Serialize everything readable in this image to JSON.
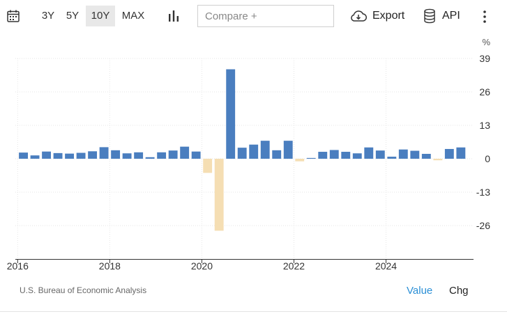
{
  "toolbar": {
    "calendar_icon": "calendar-icon",
    "ranges": [
      {
        "label": "3Y",
        "active": false
      },
      {
        "label": "5Y",
        "active": false
      },
      {
        "label": "10Y",
        "active": true
      },
      {
        "label": "MAX",
        "active": false
      }
    ],
    "chart_type_icon": "bar-chart-icon",
    "compare_placeholder": "Compare +",
    "export_label": "Export",
    "api_label": "API",
    "more_icon": "kebab-menu-icon"
  },
  "footer": {
    "source": "U.S. Bureau of Economic Analysis",
    "value_label": "Value",
    "chg_label": "Chg"
  },
  "colors": {
    "positive": "#4a7ebf",
    "negative": "#f5deb3",
    "accent": "#2a8fd6"
  },
  "chart_data": {
    "type": "bar",
    "unit": "%",
    "ylim": [
      -39,
      39
    ],
    "yticks": [
      39,
      26,
      13,
      0,
      -13,
      -26
    ],
    "xlim": [
      2015.95,
      2025.9
    ],
    "xticks": [
      2016,
      2018,
      2020,
      2022,
      2024
    ],
    "grid": true,
    "x": [
      2016.0,
      2016.25,
      2016.5,
      2016.75,
      2017.0,
      2017.25,
      2017.5,
      2017.75,
      2018.0,
      2018.25,
      2018.5,
      2018.75,
      2019.0,
      2019.25,
      2019.5,
      2019.75,
      2020.0,
      2020.25,
      2020.5,
      2020.75,
      2021.0,
      2021.25,
      2021.5,
      2021.75,
      2022.0,
      2022.25,
      2022.5,
      2022.75,
      2023.0,
      2023.25,
      2023.5,
      2023.75,
      2024.0,
      2024.25,
      2024.5,
      2024.75,
      2025.0,
      2025.25,
      2025.5
    ],
    "values": [
      2.4,
      1.3,
      2.8,
      2.2,
      2.0,
      2.3,
      2.9,
      4.5,
      3.3,
      2.1,
      2.5,
      0.6,
      2.5,
      3.2,
      4.7,
      2.8,
      -5.5,
      -28.0,
      34.8,
      4.3,
      5.5,
      7.0,
      3.3,
      7.0,
      -1.0,
      0.3,
      2.7,
      3.4,
      2.7,
      2.1,
      4.4,
      3.2,
      0.8,
      3.6,
      3.1,
      1.9,
      -0.6,
      3.8,
      4.4
    ]
  }
}
